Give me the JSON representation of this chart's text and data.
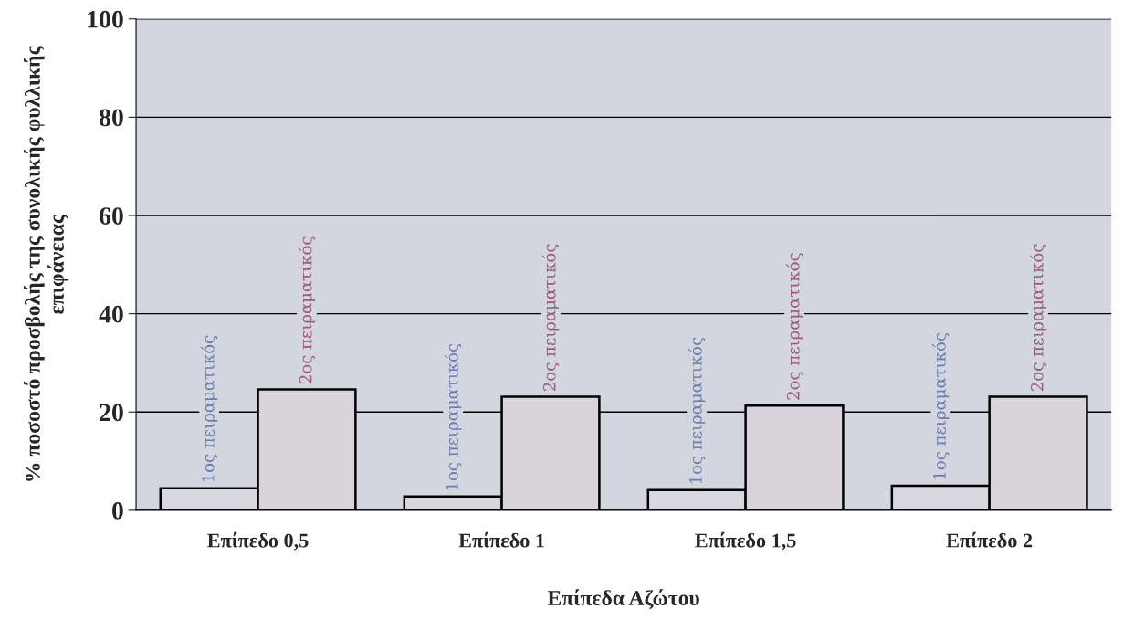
{
  "chart_data": {
    "type": "bar",
    "xlabel": "Επίπεδα Αζώτου",
    "ylabel": "% ποσοστό προσβολής της συνολικής φυλλικής επιφάνειας",
    "categories": [
      "Επίπεδο 0,5",
      "Επίπεδο 1",
      "Επίπεδο 1,5",
      "Επίπεδο 2"
    ],
    "series": [
      {
        "name": "1ος πειραματικός",
        "color": "#d8d6de",
        "values": [
          4.5,
          2.8,
          4.1,
          5.0
        ]
      },
      {
        "name": "2ος πειραματικός",
        "color": "#d9d3dc",
        "values": [
          24.6,
          23.1,
          21.3,
          23.1
        ]
      }
    ],
    "ylim": [
      0,
      100
    ],
    "yticks": [
      0,
      20,
      40,
      60,
      80,
      100
    ],
    "grid": "y",
    "legend": false
  }
}
